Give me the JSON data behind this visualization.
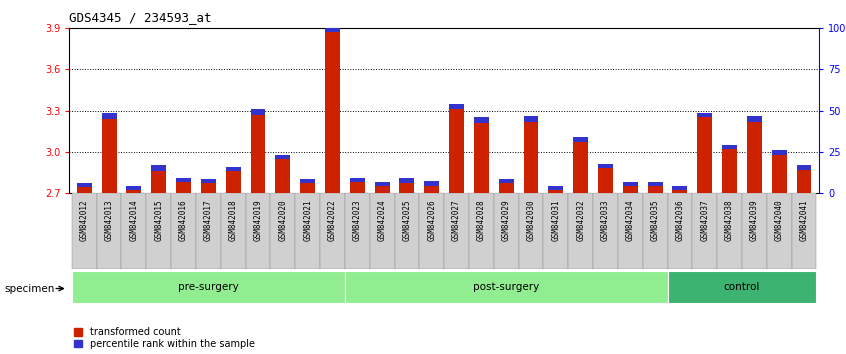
{
  "title": "GDS4345 / 234593_at",
  "samples": [
    "GSM842012",
    "GSM842013",
    "GSM842014",
    "GSM842015",
    "GSM842016",
    "GSM842017",
    "GSM842018",
    "GSM842019",
    "GSM842020",
    "GSM842021",
    "GSM842022",
    "GSM842023",
    "GSM842024",
    "GSM842025",
    "GSM842026",
    "GSM842027",
    "GSM842028",
    "GSM842029",
    "GSM842030",
    "GSM842031",
    "GSM842032",
    "GSM842033",
    "GSM842034",
    "GSM842035",
    "GSM842036",
    "GSM842037",
    "GSM842038",
    "GSM842039",
    "GSM842040",
    "GSM842041"
  ],
  "red_values": [
    2.74,
    3.24,
    2.72,
    2.86,
    2.78,
    2.77,
    2.86,
    3.27,
    2.95,
    2.77,
    3.87,
    2.78,
    2.75,
    2.77,
    2.75,
    3.31,
    3.21,
    2.77,
    3.22,
    2.72,
    3.07,
    2.88,
    2.75,
    2.75,
    2.72,
    3.25,
    3.02,
    3.22,
    2.98,
    2.87
  ],
  "blue_values": [
    0.03,
    0.04,
    0.03,
    0.04,
    0.03,
    0.03,
    0.03,
    0.04,
    0.03,
    0.03,
    0.04,
    0.03,
    0.03,
    0.04,
    0.04,
    0.04,
    0.04,
    0.03,
    0.04,
    0.03,
    0.04,
    0.03,
    0.03,
    0.03,
    0.03,
    0.03,
    0.03,
    0.04,
    0.03,
    0.03
  ],
  "groups": [
    {
      "label": "pre-surgery",
      "start": 0,
      "end": 11
    },
    {
      "label": "post-surgery",
      "start": 11,
      "end": 24
    },
    {
      "label": "control",
      "start": 24,
      "end": 30
    }
  ],
  "group_colors": [
    "#90EE90",
    "#90EE90",
    "#3CB371"
  ],
  "ylim_left": [
    2.7,
    3.9
  ],
  "ylim_right": [
    0,
    100
  ],
  "yticks_left": [
    2.7,
    3.0,
    3.3,
    3.6,
    3.9
  ],
  "yticks_right": [
    0,
    25,
    50,
    75,
    100
  ],
  "ytick_labels_right": [
    "0",
    "25",
    "50",
    "75",
    "100%"
  ],
  "bar_color_red": "#CC2200",
  "bar_color_blue": "#3333CC",
  "specimen_label": "specimen",
  "legend_red": "transformed count",
  "legend_blue": "percentile rank within the sample",
  "title_fontsize": 9,
  "tick_label_fontsize": 5.5,
  "axis_tick_fontsize": 7
}
